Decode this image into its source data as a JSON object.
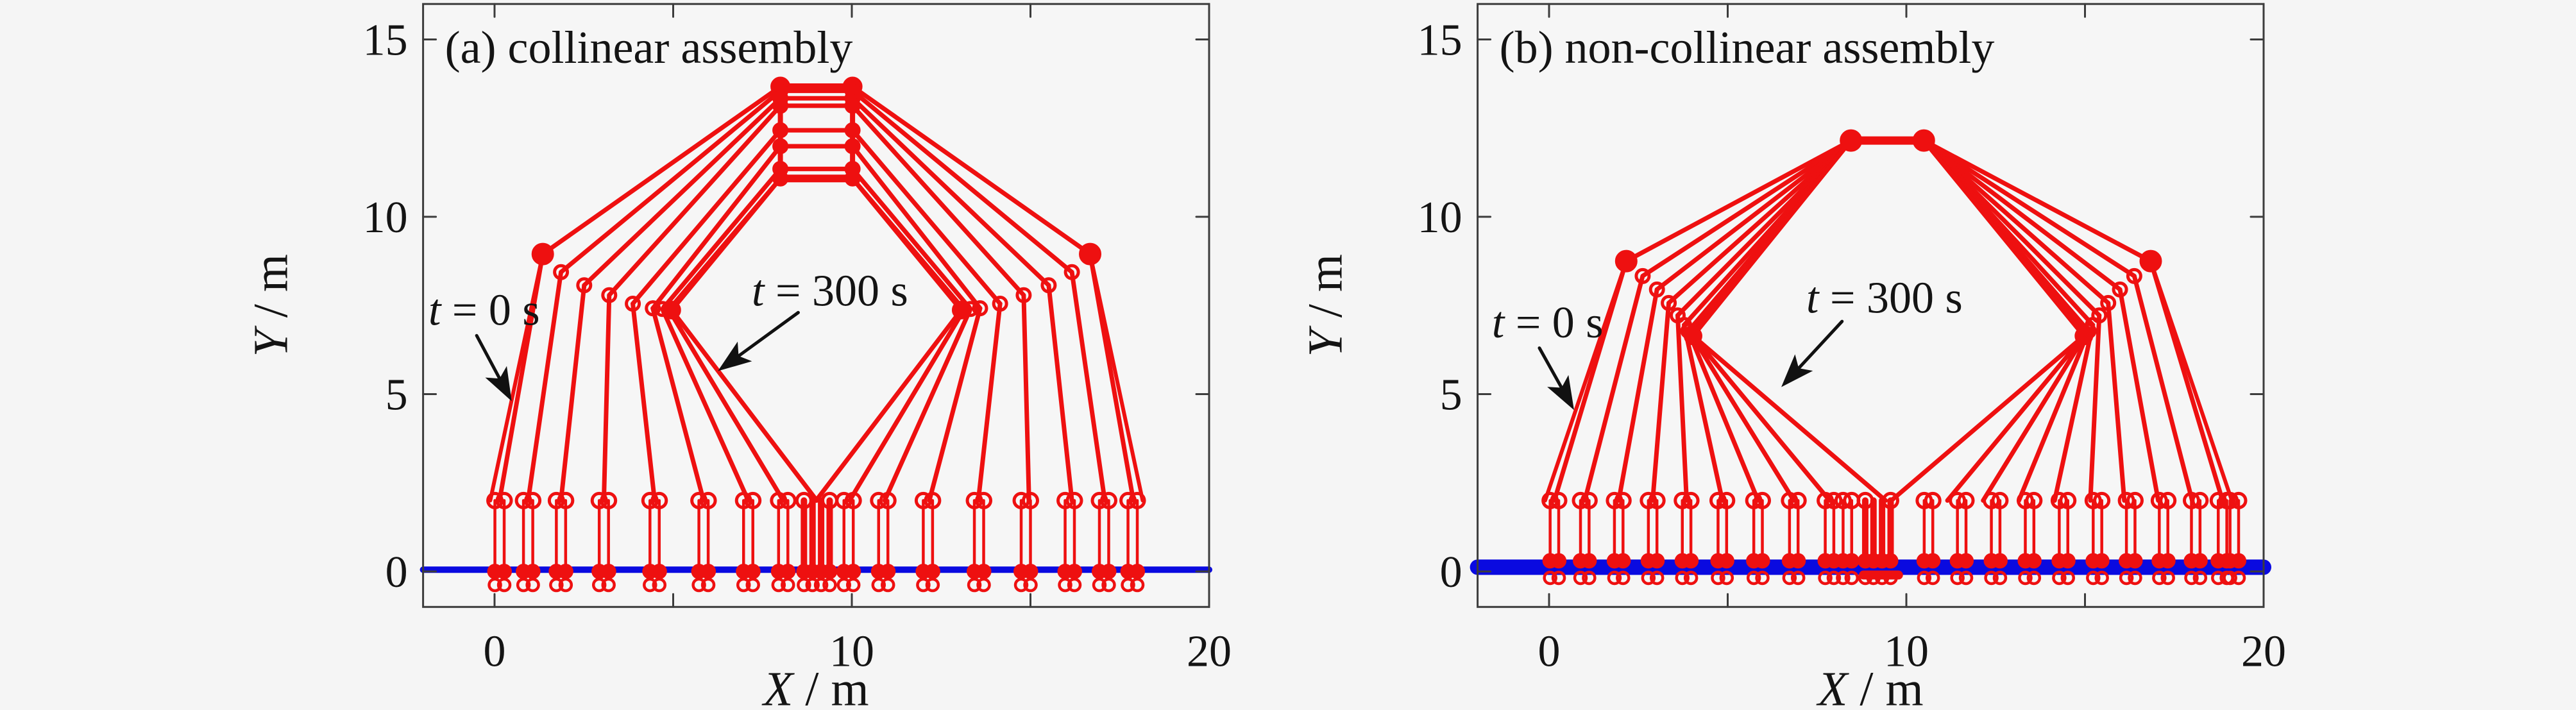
{
  "figure": {
    "background": "#f5f5f5",
    "plot_background": "#f6f6f6",
    "red": "#ee1010",
    "blue": "#0a0ae0",
    "axis_color": "#3c3c3c",
    "text_color": "#141414",
    "annotation_color": "#111111"
  },
  "chart_data": [
    {
      "type": "line",
      "title": "(a) collinear assembly",
      "xlabel": "X / m",
      "ylabel": "Y / m",
      "xlim": [
        -2,
        20
      ],
      "ylim": [
        -1,
        16
      ],
      "grid": false,
      "legend": "none",
      "xticks": [
        {
          "v": 0,
          "label": "0"
        },
        {
          "v": 5,
          "label": ""
        },
        {
          "v": 10,
          "label": "10"
        },
        {
          "v": 15,
          "label": ""
        },
        {
          "v": 20,
          "label": "20"
        }
      ],
      "yticks": [
        {
          "v": 0,
          "label": "0"
        },
        {
          "v": 5,
          "label": "5"
        },
        {
          "v": 10,
          "label": "10"
        },
        {
          "v": 15,
          "label": "15"
        }
      ],
      "mirror_axis_x": 9.01,
      "ground": {
        "y": 0.05,
        "thickness_px": 10
      },
      "stations": {
        "x": [
          0.14,
          0.94,
          1.86,
          3.06,
          4.48,
          5.85,
          7.1,
          8.08,
          9.91,
          10.88,
          12.13,
          13.56,
          14.87,
          16.1,
          17.06,
          17.86
        ],
        "pair_offset": 0.13,
        "top_y": 2,
        "base_y": 0,
        "under_circle_y": -0.38
      },
      "center_struts": {
        "x": [
          8.66,
          8.9,
          9.14,
          9.38
        ],
        "top_y": 2,
        "base_y": 0
      },
      "snapshots": {
        "feet_x": [
          0.14,
          0.94,
          1.86,
          3.06,
          4.48,
          5.85,
          7.1,
          8.08,
          9.02
        ],
        "elbows": [
          [
            1.35,
            8.95
          ],
          [
            1.86,
            8.44
          ],
          [
            2.51,
            8.07
          ],
          [
            3.21,
            7.79
          ],
          [
            3.87,
            7.55
          ],
          [
            4.43,
            7.42
          ],
          [
            4.7,
            7.4
          ],
          [
            4.88,
            7.38
          ],
          [
            4.96,
            7.37
          ]
        ],
        "corner_y": [
          13.67,
          13.55,
          13.34,
          13.13,
          12.44,
          11.99,
          11.35,
          11.08,
          11.08
        ],
        "double_first_foot": true
      },
      "platform": {
        "kind": "ladder",
        "rail_left_x": 8.0,
        "rail_right_x": 10.02,
        "rung_y": [
          13.67,
          13.55,
          13.34,
          13.13,
          12.44,
          11.99,
          11.35,
          11.08
        ]
      },
      "annotations": [
        {
          "text": "t = 0 s",
          "x": -1.85,
          "y": 6.95,
          "arrow": [
            -0.5,
            6.65,
            0.48,
            4.8
          ]
        },
        {
          "text": "t = 300 s",
          "x": 7.2,
          "y": 7.5,
          "arrow": [
            8.5,
            7.3,
            6.25,
            5.65
          ]
        }
      ]
    },
    {
      "type": "line",
      "title": "(b) non-collinear assembly",
      "xlabel": "X / m",
      "ylabel": "Y / m",
      "xlim": [
        -2,
        20
      ],
      "ylim": [
        -1,
        16
      ],
      "grid": false,
      "legend": "none",
      "xticks": [
        {
          "v": 0,
          "label": "0"
        },
        {
          "v": 5,
          "label": ""
        },
        {
          "v": 10,
          "label": "10"
        },
        {
          "v": 15,
          "label": ""
        },
        {
          "v": 20,
          "label": "20"
        }
      ],
      "yticks": [
        {
          "v": 0,
          "label": "0"
        },
        {
          "v": 5,
          "label": "5"
        },
        {
          "v": 10,
          "label": "10"
        },
        {
          "v": 15,
          "label": "15"
        }
      ],
      "mirror_axis_x": 9.5,
      "ground": {
        "y": 0.12,
        "thickness_px": 24
      },
      "ground_bar": {
        "x1": 8.8,
        "x2": 9.78,
        "y": -0.1,
        "thickness_px": 14
      },
      "stations": {
        "x": [
          0.15,
          1.0,
          1.95,
          2.9,
          3.85,
          4.85,
          5.85,
          6.85,
          7.85,
          8.35,
          10.62,
          11.55,
          12.5,
          13.45,
          14.4,
          15.35,
          16.28,
          17.2,
          18.1,
          18.85,
          19.18
        ],
        "pair_offset": 0.12,
        "top_y": 2,
        "base_y": 0.3,
        "under_circle_y": -0.18
      },
      "center_struts": {
        "x": [
          8.85,
          9.08,
          9.32,
          9.56
        ],
        "top_y": 2,
        "base_y": 0.3
      },
      "snapshots": {
        "feet_x": [
          0.15,
          1.0,
          1.95,
          2.9,
          3.85,
          4.85,
          5.85,
          6.85,
          7.85,
          9.42
        ],
        "elbows": [
          [
            2.16,
            8.75
          ],
          [
            2.62,
            8.33
          ],
          [
            3.02,
            7.95
          ],
          [
            3.35,
            7.57
          ],
          [
            3.6,
            7.22
          ],
          [
            3.78,
            6.95
          ],
          [
            3.9,
            6.78
          ],
          [
            3.97,
            6.7
          ],
          [
            4.01,
            6.66
          ],
          [
            4.03,
            6.64
          ]
        ],
        "corner_y": [
          12.15,
          12.15,
          12.15,
          12.15,
          12.15,
          12.15,
          12.15,
          12.15,
          12.15,
          12.15
        ],
        "double_first_foot": true
      },
      "platform": {
        "kind": "bar",
        "x1": 8.45,
        "x2": 10.49,
        "y": 12.15
      },
      "annotations": [
        {
          "text": "t = 0 s",
          "x": -1.6,
          "y": 6.6,
          "arrow": [
            -0.27,
            6.3,
            0.7,
            4.55
          ]
        },
        {
          "text": "t = 300 s",
          "x": 7.2,
          "y": 7.3,
          "arrow": [
            8.2,
            7.05,
            6.5,
            5.2
          ]
        }
      ]
    }
  ]
}
